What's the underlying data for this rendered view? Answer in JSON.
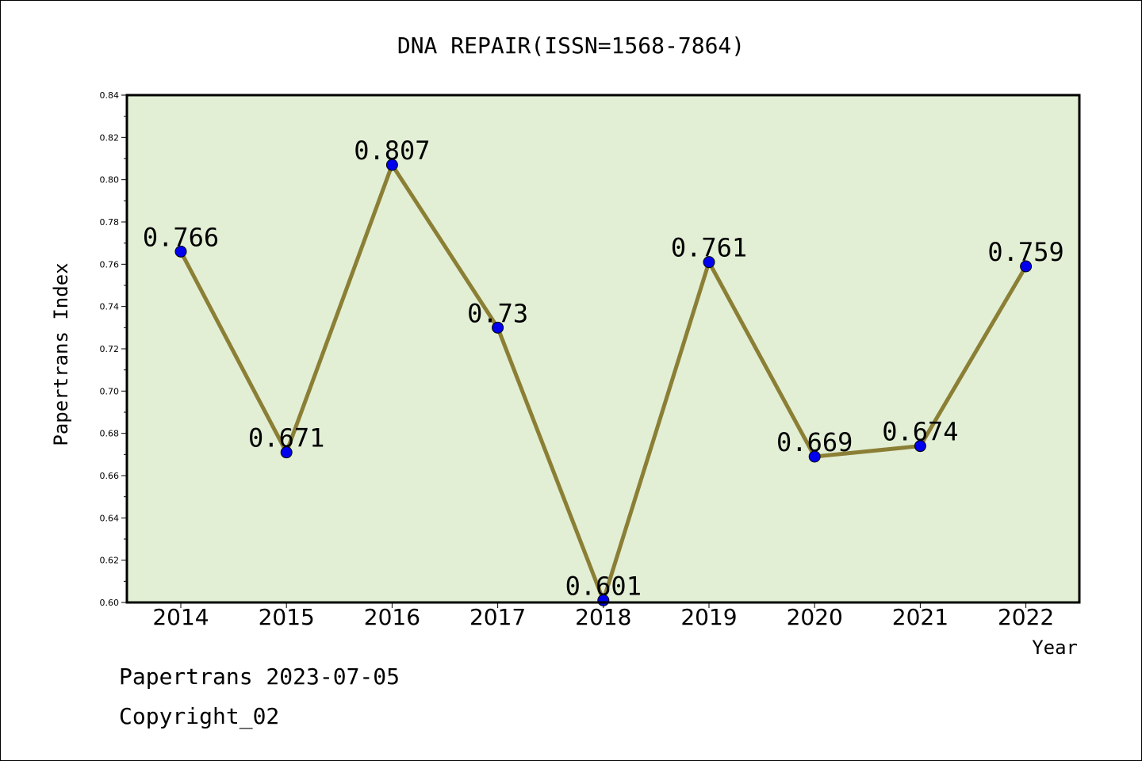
{
  "chart_data": {
    "type": "line",
    "title": "DNA REPAIR(ISSN=1568-7864)",
    "xlabel": "Year",
    "ylabel": "Papertrans Index",
    "categories": [
      "2014",
      "2015",
      "2016",
      "2017",
      "2018",
      "2019",
      "2020",
      "2021",
      "2022"
    ],
    "values": [
      0.766,
      0.671,
      0.807,
      0.73,
      0.601,
      0.761,
      0.669,
      0.674,
      0.759
    ],
    "data_labels": [
      "0.766",
      "0.671",
      "0.807",
      "0.73",
      "0.601",
      "0.761",
      "0.669",
      "0.674",
      "0.759"
    ],
    "ylim": [
      0.6,
      0.84
    ],
    "yticks": [
      "0.60",
      "0.62",
      "0.64",
      "0.66",
      "0.68",
      "0.70",
      "0.72",
      "0.74",
      "0.76",
      "0.78",
      "0.80",
      "0.82",
      "0.84"
    ],
    "grid": false,
    "colors": {
      "plot_bg": "#e2efd5",
      "line": "#8b7f35",
      "marker": "#0000ee"
    }
  },
  "footer": {
    "line1": "Papertrans 2023-07-05",
    "line2": "Copyright_02"
  }
}
